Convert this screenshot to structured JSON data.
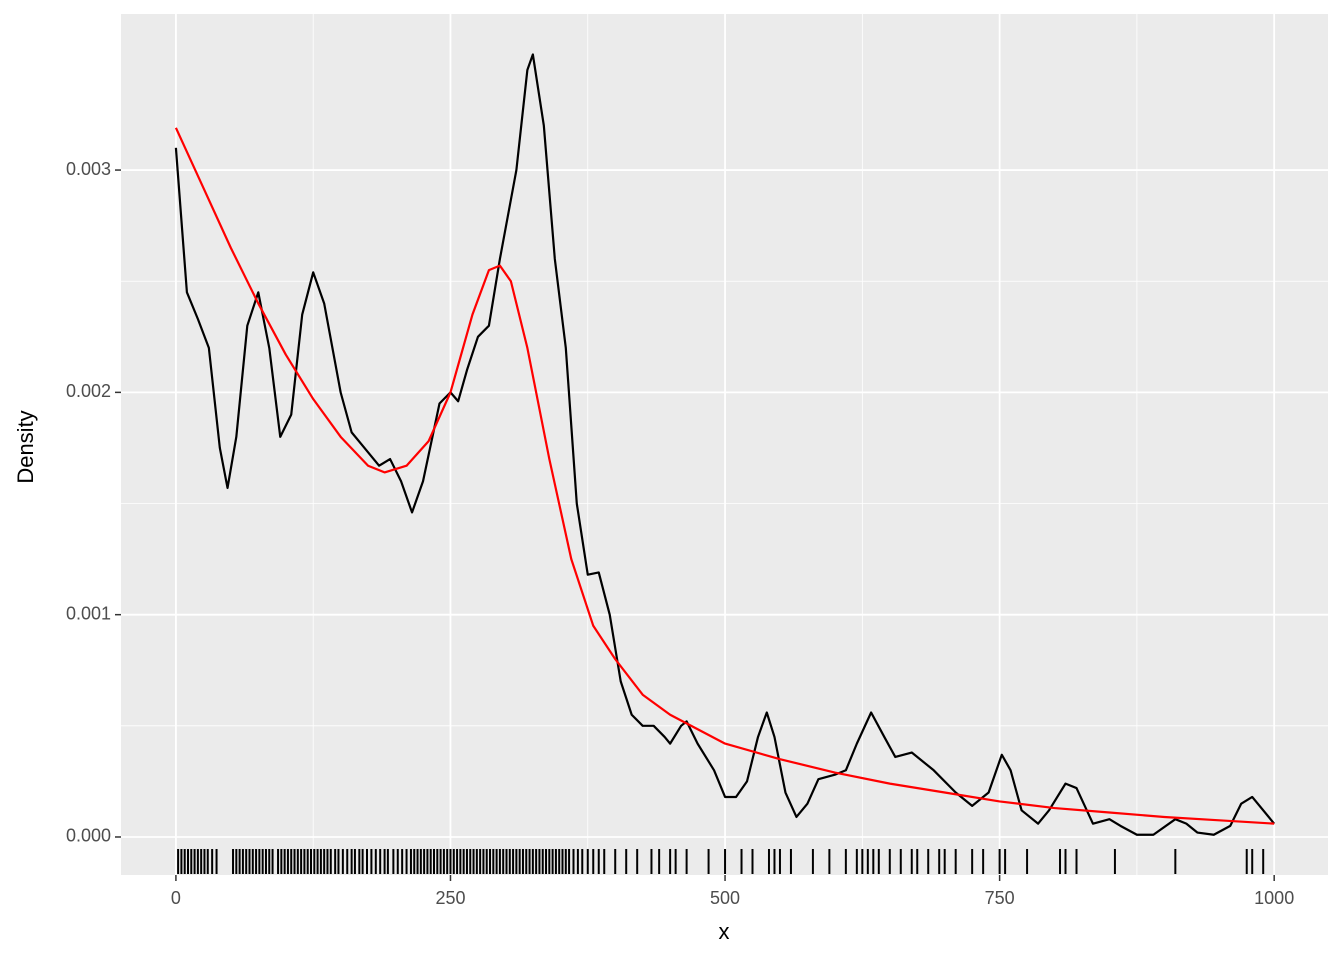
{
  "chart_data": {
    "type": "density",
    "x_label": "x",
    "y_label": "Density",
    "xlim": [
      -50,
      1049
    ],
    "ylim": [
      -0.000171,
      0.003702
    ],
    "xticks": [
      0,
      250,
      500,
      750,
      1000
    ],
    "yticks": [
      {
        "value": 0,
        "label": "0.000"
      },
      {
        "value": 0.001,
        "label": "0.001"
      },
      {
        "value": 0.002,
        "label": "0.002"
      },
      {
        "value": 0.003,
        "label": "0.003"
      }
    ],
    "grid": true,
    "background": "#ebebeb",
    "series": [
      {
        "color": "#000000",
        "x": [
          0,
          10,
          20,
          30,
          40,
          47,
          55,
          65,
          75,
          85,
          95,
          105,
          115,
          125,
          135,
          150,
          160,
          170,
          185,
          195,
          205,
          215,
          225,
          240,
          250,
          257,
          265,
          275,
          285,
          295,
          310,
          320,
          325,
          335,
          345,
          355,
          365,
          375,
          385,
          395,
          405,
          415,
          425,
          435,
          445,
          450,
          460,
          465,
          475,
          490,
          500,
          510,
          520,
          530,
          538,
          545,
          555,
          565,
          575,
          585,
          600,
          610,
          620,
          633,
          645,
          655,
          670,
          690,
          710,
          725,
          740,
          752,
          760,
          770,
          785,
          795,
          810,
          820,
          835,
          850,
          860,
          875,
          890,
          910,
          920,
          930,
          945,
          960,
          970,
          980,
          1000
        ],
        "values": [
          0.0031,
          0.00245,
          0.00233,
          0.0022,
          0.00175,
          0.00157,
          0.0018,
          0.0023,
          0.00245,
          0.0022,
          0.0018,
          0.0019,
          0.00235,
          0.00254,
          0.0024,
          0.002,
          0.00182,
          0.00176,
          0.00167,
          0.0017,
          0.0016,
          0.00146,
          0.0016,
          0.00195,
          0.002,
          0.00196,
          0.0021,
          0.00225,
          0.0023,
          0.0026,
          0.003,
          0.00345,
          0.00352,
          0.0032,
          0.0026,
          0.0022,
          0.0015,
          0.00118,
          0.00119,
          0.001,
          0.0007,
          0.00055,
          0.0005,
          0.0005,
          0.00045,
          0.00042,
          0.0005,
          0.00052,
          0.00042,
          0.0003,
          0.00018,
          0.00018,
          0.00025,
          0.00045,
          0.00056,
          0.00045,
          0.0002,
          9e-05,
          0.00015,
          0.00026,
          0.00028,
          0.0003,
          0.00042,
          0.00056,
          0.00045,
          0.00036,
          0.00038,
          0.0003,
          0.0002,
          0.00014,
          0.0002,
          0.00037,
          0.0003,
          0.00012,
          6e-05,
          0.00012,
          0.00024,
          0.00022,
          6e-05,
          8e-05,
          5e-05,
          1e-05,
          1e-05,
          8e-05,
          6e-05,
          2e-05,
          1e-05,
          5e-05,
          0.00015,
          0.00018,
          6e-05
        ]
      },
      {
        "color": "#ff0000",
        "x": [
          0,
          25,
          50,
          75,
          100,
          125,
          150,
          175,
          190,
          210,
          230,
          250,
          270,
          285,
          295,
          305,
          320,
          340,
          360,
          380,
          400,
          425,
          450,
          500,
          550,
          600,
          650,
          700,
          750,
          800,
          850,
          900,
          950,
          1000
        ],
        "values": [
          0.00319,
          0.00292,
          0.00265,
          0.0024,
          0.00217,
          0.00197,
          0.0018,
          0.00167,
          0.00164,
          0.00167,
          0.00178,
          0.002,
          0.00235,
          0.00255,
          0.00257,
          0.0025,
          0.0022,
          0.0017,
          0.00125,
          0.00095,
          0.0008,
          0.00064,
          0.00055,
          0.00042,
          0.00035,
          0.00029,
          0.00024,
          0.0002,
          0.00016,
          0.00013,
          0.00011,
          9e-05,
          7.5e-05,
          6e-05
        ]
      }
    ],
    "rug": [
      2,
      5,
      8,
      11,
      14,
      17,
      20,
      23,
      26,
      29,
      33,
      37,
      52,
      55,
      58,
      61,
      64,
      67,
      70,
      73,
      76,
      79,
      82,
      85,
      88,
      93,
      96,
      99,
      102,
      105,
      108,
      111,
      114,
      117,
      120,
      123,
      126,
      129,
      132,
      135,
      138,
      141,
      145,
      148,
      152,
      156,
      160,
      163,
      167,
      170,
      174,
      178,
      182,
      186,
      190,
      193,
      198,
      202,
      206,
      210,
      214,
      217,
      220,
      223,
      226,
      229,
      232,
      235,
      238,
      241,
      244,
      247,
      250,
      253,
      256,
      259,
      262,
      265,
      268,
      271,
      274,
      277,
      280,
      283,
      286,
      289,
      292,
      295,
      298,
      301,
      304,
      307,
      310,
      313,
      316,
      319,
      322,
      325,
      328,
      331,
      334,
      337,
      340,
      343,
      346,
      349,
      352,
      355,
      358,
      362,
      366,
      370,
      375,
      380,
      385,
      390,
      400,
      410,
      420,
      433,
      440,
      450,
      455,
      465,
      485,
      500,
      515,
      525,
      540,
      545,
      550,
      560,
      580,
      595,
      610,
      620,
      625,
      630,
      635,
      640,
      650,
      660,
      670,
      675,
      685,
      695,
      700,
      710,
      725,
      735,
      750,
      755,
      775,
      805,
      810,
      820,
      855,
      910,
      975,
      980,
      990
    ]
  }
}
